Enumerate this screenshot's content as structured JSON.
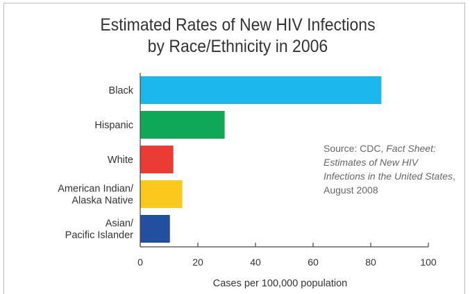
{
  "chart_data": {
    "type": "bar",
    "orientation": "horizontal",
    "title_lines": [
      "Estimated Rates of New HIV Infections",
      "by Race/Ethnicity in 2006"
    ],
    "categories": [
      [
        "Black"
      ],
      [
        "Hispanic"
      ],
      [
        "White"
      ],
      [
        "American Indian/",
        "Alaska Native"
      ],
      [
        "Asian/",
        "Pacific Islander"
      ]
    ],
    "values": [
      83.7,
      29.3,
      11.5,
      14.6,
      10.3
    ],
    "bar_colors": [
      "#1cb8ec",
      "#0fa858",
      "#ea3c35",
      "#fcc81c",
      "#234f9f"
    ],
    "xlabel": "Cases per 100,000 population",
    "ylabel": "",
    "xlim": [
      0,
      100
    ],
    "xticks": [
      0,
      20,
      40,
      60,
      80,
      100
    ],
    "grid": false,
    "legend": "none"
  },
  "source_note": {
    "prefix": "Source: CDC, ",
    "title_italic": "Fact Sheet: Estimates of New HIV Infections in the United States",
    "suffix": ", August 2008"
  }
}
